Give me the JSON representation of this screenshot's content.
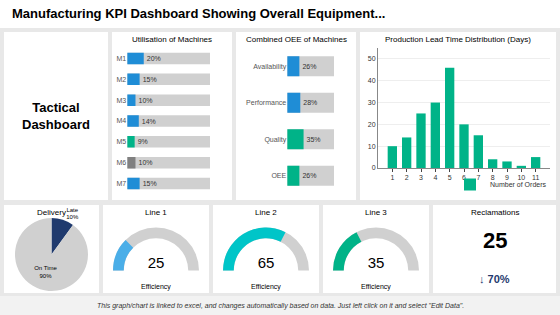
{
  "title": "Manufacturing KPI Dashboard Showing Overall Equipment...",
  "annotations": [
    "Tactical\nDashboard",
    "This graph/chart is linked to excel, and changes automatically based on data. Just left click on it and select \"Edit Data\"."
  ],
  "chart_data": [
    {
      "type": "bar",
      "title": "Utilisation of Machines",
      "orientation": "horizontal",
      "categories": [
        "M1",
        "M2",
        "M3",
        "M4",
        "M5",
        "M6",
        "M7"
      ],
      "values": [
        20,
        15,
        10,
        14,
        9,
        10,
        15
      ],
      "value_labels": [
        "20%",
        "15%",
        "10%",
        "14%",
        "9%",
        "10%",
        "15%"
      ],
      "colors": [
        "#1F8DD6",
        "#1F8DD6",
        "#1F8DD6",
        "#1F8DD6",
        "#00B388",
        "#808080",
        "#1F8DD6"
      ],
      "xlim": [
        0,
        100
      ],
      "data_labels": true,
      "tick_labels": "y"
    },
    {
      "type": "bar",
      "title": "Combined OEE of Machines",
      "orientation": "horizontal",
      "categories": [
        "Availability",
        "Performance",
        "Quality",
        "OEE"
      ],
      "values": [
        26,
        28,
        35,
        26
      ],
      "value_labels": [
        "26%",
        "28%",
        "35%",
        "26%"
      ],
      "colors": [
        "#1F8DD6",
        "#1F8DD6",
        "#00B388",
        "#00B388"
      ],
      "xlim": [
        0,
        100
      ],
      "data_labels": true,
      "tick_labels": "y"
    },
    {
      "type": "bar",
      "title": "Production Lead Time Distribution (Days)",
      "x": [
        1,
        2,
        3,
        4,
        5,
        6,
        7,
        8,
        9,
        10,
        11
      ],
      "series": [
        {
          "name": "Number of Orders",
          "color": "#00B388",
          "values": [
            10,
            14,
            25,
            30,
            46,
            20,
            15,
            4,
            3,
            1,
            5
          ]
        }
      ],
      "xlim": [
        0,
        12
      ],
      "xticks": [
        1,
        2,
        3,
        4,
        5,
        6,
        7,
        8,
        9,
        10,
        11
      ],
      "ylim": [
        0,
        55
      ],
      "yticks": [
        0,
        10,
        20,
        30,
        40,
        50
      ],
      "grid": true,
      "legend": "lower right"
    },
    {
      "type": "pie",
      "title": "Delivery",
      "categories": [
        "Late",
        "On Time"
      ],
      "values": [
        10,
        90
      ],
      "value_labels": [
        "Late\n10%",
        "On Time\n90%"
      ],
      "colors": [
        "#1F3A6E",
        "#d0d0d0"
      ],
      "data_labels": true
    },
    {
      "type": "gauge",
      "title": "Line 1",
      "subtitle": "Efficiency",
      "values": [
        25
      ],
      "color": "#4aaee8",
      "ylim": [
        0,
        100
      ],
      "tick_labels": false,
      "data_labels": true
    },
    {
      "type": "gauge",
      "title": "Line 2",
      "subtitle": "Efficiency",
      "values": [
        65
      ],
      "color": "#00C5C8",
      "ylim": [
        0,
        100
      ],
      "tick_labels": false,
      "data_labels": true
    },
    {
      "type": "gauge",
      "title": "Line 3",
      "subtitle": "Efficiency",
      "values": [
        35
      ],
      "color": "#00B388",
      "ylim": [
        0,
        100
      ],
      "tick_labels": false,
      "data_labels": true
    },
    {
      "type": "kpi",
      "title": "Reclamations",
      "values": [
        25
      ],
      "annotations": [
        "↓ 70%"
      ],
      "color": "#1F3A6E"
    }
  ]
}
